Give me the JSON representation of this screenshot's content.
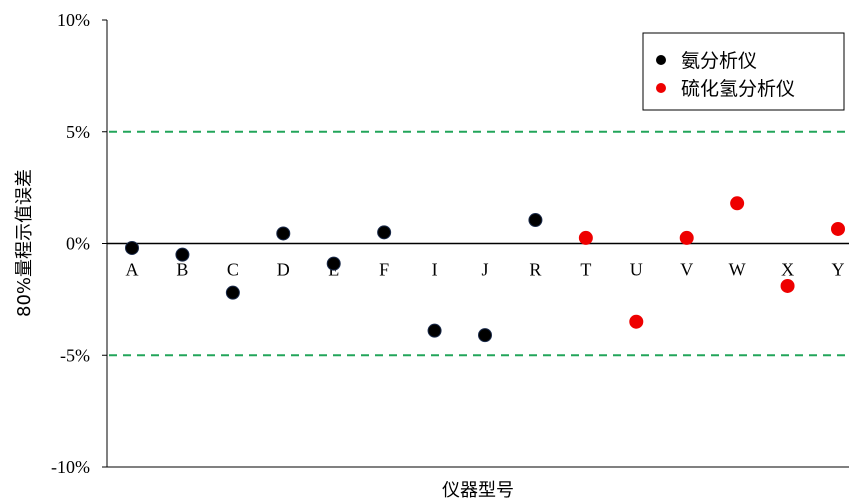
{
  "chart_data": {
    "type": "scatter",
    "xlabel": "仪器型号",
    "ylabel": "80%量程示值误差",
    "ylim": [
      -10,
      10
    ],
    "yticks": [
      {
        "value": 10,
        "label": "10%"
      },
      {
        "value": 5,
        "label": "5%"
      },
      {
        "value": 0,
        "label": "0%"
      },
      {
        "value": -5,
        "label": "-5%"
      },
      {
        "value": -10,
        "label": "-10%"
      }
    ],
    "categories": [
      "A",
      "B",
      "C",
      "D",
      "E",
      "F",
      "I",
      "J",
      "R",
      "T",
      "U",
      "V",
      "W",
      "X",
      "Y"
    ],
    "reference_lines": [
      5,
      -5
    ],
    "reference_line_color": "#22a55a",
    "legend_position": "top-right",
    "series": [
      {
        "name": "氨分析仪",
        "color": "#000000",
        "points": [
          {
            "x": "A",
            "y": -0.2
          },
          {
            "x": "B",
            "y": -0.5
          },
          {
            "x": "C",
            "y": -2.2
          },
          {
            "x": "D",
            "y": 0.45
          },
          {
            "x": "E",
            "y": -0.9
          },
          {
            "x": "F",
            "y": 0.5
          },
          {
            "x": "I",
            "y": -3.9
          },
          {
            "x": "J",
            "y": -4.1
          },
          {
            "x": "R",
            "y": 1.05
          }
        ]
      },
      {
        "name": "硫化氢分析仪",
        "color": "#ee0000",
        "points": [
          {
            "x": "T",
            "y": 0.25
          },
          {
            "x": "U",
            "y": -3.5
          },
          {
            "x": "V",
            "y": 0.25
          },
          {
            "x": "W",
            "y": 1.8
          },
          {
            "x": "X",
            "y": -1.9
          },
          {
            "x": "Y",
            "y": 0.65
          }
        ]
      }
    ]
  }
}
